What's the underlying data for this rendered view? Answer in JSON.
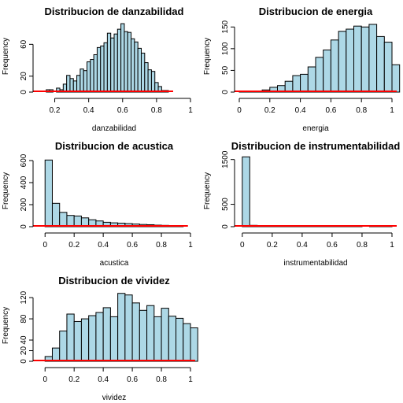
{
  "chart_data": [
    {
      "type": "bar",
      "title": "Distribucion de danzabilidad",
      "xlabel": "danzabilidad",
      "ylabel": "Frequency",
      "bin_start": 0.15,
      "bin_width": 0.02,
      "values": [
        3,
        3,
        0,
        5,
        3,
        10,
        21,
        17,
        14,
        21,
        29,
        27,
        38,
        41,
        47,
        56,
        58,
        62,
        74,
        68,
        73,
        79,
        86,
        76,
        75,
        67,
        63,
        55,
        49,
        37,
        28,
        26,
        12,
        7,
        2,
        2
      ],
      "xlim": [
        0.1,
        1.0
      ],
      "ylim": [
        0,
        90
      ],
      "xticks": [
        0.2,
        0.4,
        0.6,
        0.8,
        1.0
      ],
      "yticks": [
        0,
        20,
        60
      ],
      "density_rug": true
    },
    {
      "type": "bar",
      "title": "Distribucion de energia",
      "xlabel": "energia",
      "ylabel": "Frequency",
      "bin_start": 0.0,
      "bin_width": 0.05,
      "values": [
        1,
        2,
        2,
        5,
        11,
        15,
        25,
        38,
        41,
        58,
        80,
        97,
        120,
        140,
        145,
        152,
        150,
        156,
        128,
        115,
        63
      ],
      "xlim": [
        0,
        1.0
      ],
      "ylim": [
        0,
        165
      ],
      "xticks": [
        0.0,
        0.2,
        0.4,
        0.6,
        0.8,
        1.0
      ],
      "yticks": [
        0,
        50,
        100,
        150
      ],
      "density_rug": true
    },
    {
      "type": "bar",
      "title": "Distribucion de acustica",
      "xlabel": "acustica",
      "ylabel": "Frequency",
      "bin_start": 0.0,
      "bin_width": 0.05,
      "values": [
        605,
        212,
        130,
        102,
        97,
        80,
        63,
        52,
        40,
        35,
        32,
        28,
        24,
        20,
        18,
        14,
        12,
        10,
        3
      ],
      "xlim": [
        -0.05,
        1.0
      ],
      "ylim": [
        0,
        650
      ],
      "xticks": [
        0.0,
        0.2,
        0.4,
        0.6,
        0.8,
        1.0
      ],
      "yticks": [
        0,
        200,
        400,
        600
      ],
      "density_rug": true
    },
    {
      "type": "bar",
      "title": "Distribucion de instrumentabilidad",
      "xlabel": "instrumentabilidad",
      "ylabel": "Frequency",
      "bin_start": 0.0,
      "bin_width": 0.05,
      "values": [
        1560,
        30,
        8,
        4,
        3,
        2,
        2,
        2,
        1,
        1,
        1,
        1,
        1,
        1,
        1,
        1,
        0,
        1,
        1,
        1
      ],
      "xlim": [
        -0.02,
        1.0
      ],
      "ylim": [
        0,
        1600
      ],
      "xticks": [
        0.0,
        0.2,
        0.4,
        0.6,
        0.8,
        1.0
      ],
      "yticks": [
        0,
        500,
        1500
      ],
      "density_rug": true
    },
    {
      "type": "bar",
      "title": "Distribucion de vividez",
      "xlabel": "vividez",
      "ylabel": "Frequency",
      "bin_start": 0.0,
      "bin_width": 0.05,
      "values": [
        9,
        25,
        57,
        89,
        75,
        80,
        86,
        92,
        101,
        84,
        128,
        125,
        110,
        96,
        105,
        84,
        100,
        85,
        81,
        71,
        63
      ],
      "xlim": [
        -0.05,
        1.0
      ],
      "ylim": [
        0,
        135
      ],
      "xticks": [
        0.0,
        0.2,
        0.4,
        0.6,
        0.8,
        1.0
      ],
      "yticks": [
        0,
        20,
        40,
        80,
        120
      ],
      "density_rug": true
    }
  ],
  "style": {
    "bar_fill": "#add8e6",
    "bar_stroke": "#000000",
    "density_color": "#ff0000"
  }
}
